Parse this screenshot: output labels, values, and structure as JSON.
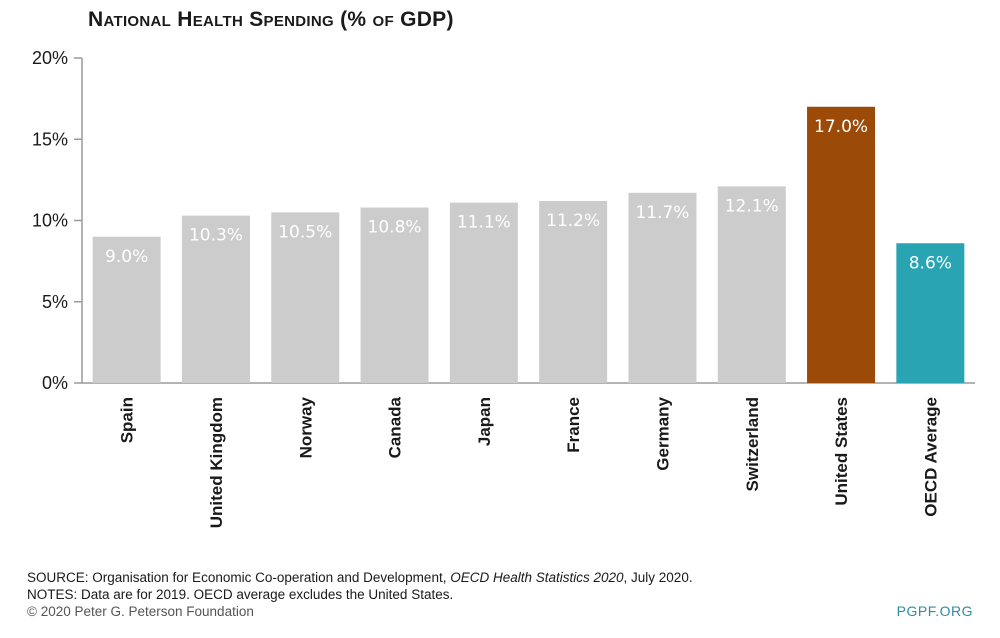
{
  "title": "National Health Spending (% of GDP)",
  "chart_data": {
    "type": "bar",
    "title": "National Health Spending (% of GDP)",
    "categories": [
      "Spain",
      "United Kingdom",
      "Norway",
      "Canada",
      "Japan",
      "France",
      "Germany",
      "Switzerland",
      "United States",
      "OECD Average"
    ],
    "values": [
      9.0,
      10.3,
      10.5,
      10.8,
      11.1,
      11.2,
      11.7,
      12.1,
      17.0,
      8.6
    ],
    "data_labels": [
      "9.0%",
      "10.3%",
      "10.5%",
      "10.8%",
      "11.1%",
      "11.2%",
      "11.7%",
      "12.1%",
      "17.0%",
      "8.6%"
    ],
    "bar_colors": [
      "#cccccc",
      "#cccccc",
      "#cccccc",
      "#cccccc",
      "#cccccc",
      "#cccccc",
      "#cccccc",
      "#cccccc",
      "#9b4a08",
      "#29a4b3"
    ],
    "y_ticks": [
      0,
      5,
      10,
      15,
      20
    ],
    "y_tick_labels": [
      "0%",
      "5%",
      "10%",
      "15%",
      "20%"
    ],
    "ylim": [
      0,
      20
    ],
    "xlabel": "",
    "ylabel": "",
    "grid": false,
    "legend": "none"
  },
  "footer": {
    "source_prefix": "SOURCE: Organisation for Economic Co-operation and Development, ",
    "source_italic": "OECD Health Statistics 2020",
    "source_suffix": ", July 2020.",
    "notes": "NOTES: Data are for 2019. OECD average excludes the United States.",
    "copyright": "© 2020 Peter G. Peterson Foundation",
    "brand": "PGPF.ORG"
  },
  "colors": {
    "axis": "#9a9a9a",
    "text": "#1a1a1a",
    "brand": "#2a8fa0"
  }
}
